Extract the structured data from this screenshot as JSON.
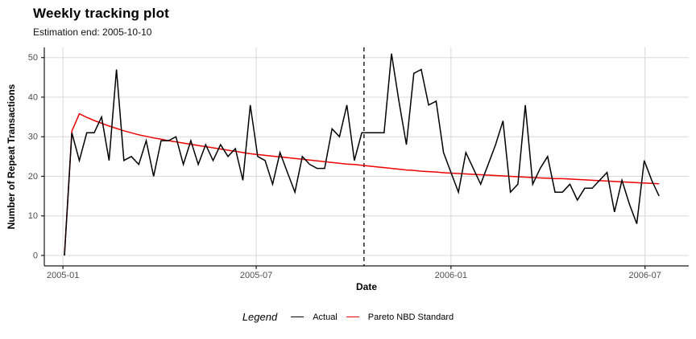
{
  "header": {
    "title": "Weekly tracking plot",
    "subtitle": "Estimation end: 2005-10-10"
  },
  "chart_data": {
    "type": "line",
    "title": "Weekly tracking plot",
    "subtitle": "Estimation end: 2005-10-10",
    "xlabel": "Date",
    "ylabel": "Number of Repeat Transactions",
    "x_unit": "weeks since 2005-01 (weekly buckets, index 0-80)",
    "ylim": [
      0,
      50
    ],
    "y_ticks": [
      0,
      10,
      20,
      30,
      40,
      50
    ],
    "x_ticks": [
      {
        "label": "2005-01",
        "week": -0.2
      },
      {
        "label": "2005-07",
        "week": 25.8
      },
      {
        "label": "2006-01",
        "week": 52.0
      },
      {
        "label": "2006-07",
        "week": 78.1
      }
    ],
    "estimation_end": {
      "label": "2005-10-10",
      "week": 40.3
    },
    "grid": true,
    "legend_position": "bottom",
    "series": [
      {
        "name": "Actual",
        "color": "#000000",
        "values": [
          0,
          31,
          24,
          31,
          31,
          35,
          24,
          47,
          24,
          25,
          23,
          29,
          20,
          29,
          29,
          30,
          23,
          29,
          23,
          28,
          24,
          28,
          25,
          27,
          19,
          38,
          25,
          24,
          18,
          26,
          21,
          16,
          25,
          23,
          22,
          22,
          32,
          30,
          38,
          24,
          31,
          31,
          31,
          31,
          51,
          39,
          28,
          46,
          47,
          38,
          39,
          26,
          21,
          16,
          26,
          22,
          18,
          23,
          28,
          34,
          16,
          18,
          38,
          18,
          22,
          25,
          16,
          16,
          18,
          14,
          17,
          17,
          19,
          21,
          11,
          19,
          13,
          8,
          24,
          19,
          15
        ]
      },
      {
        "name": "Pareto NBD Standard",
        "color": "#EE0000",
        "values": [
          0,
          31.4,
          35.8,
          34.9,
          34.1,
          33.4,
          32.7,
          32.1,
          31.5,
          31.0,
          30.5,
          30.1,
          29.7,
          29.4,
          29.0,
          28.7,
          28.4,
          28.1,
          27.8,
          27.5,
          27.2,
          26.9,
          26.6,
          26.3,
          26.0,
          25.7,
          25.5,
          25.3,
          25.1,
          24.9,
          24.7,
          24.5,
          24.3,
          24.1,
          23.9,
          23.7,
          23.5,
          23.3,
          23.1,
          23.0,
          22.8,
          22.6,
          22.4,
          22.2,
          22.0,
          21.8,
          21.6,
          21.5,
          21.3,
          21.2,
          21.1,
          20.9,
          20.8,
          20.7,
          20.6,
          20.5,
          20.4,
          20.3,
          20.2,
          20.1,
          20.0,
          19.9,
          19.8,
          19.7,
          19.6,
          19.5,
          19.4,
          19.4,
          19.3,
          19.2,
          19.1,
          19.0,
          18.9,
          18.8,
          18.7,
          18.6,
          18.5,
          18.4,
          18.3,
          18.2,
          18.1
        ]
      }
    ]
  },
  "legend": {
    "title": "Legend",
    "items": [
      {
        "label": "Actual",
        "color": "#000000"
      },
      {
        "label": "Pareto NBD Standard",
        "color": "#EE0000"
      }
    ]
  },
  "colors": {
    "grid": "#D8D8D8",
    "axis": "#1A1A1A",
    "tick_label": "#4D4D4D",
    "dashed_line": "#000000",
    "background": "#FFFFFF"
  }
}
